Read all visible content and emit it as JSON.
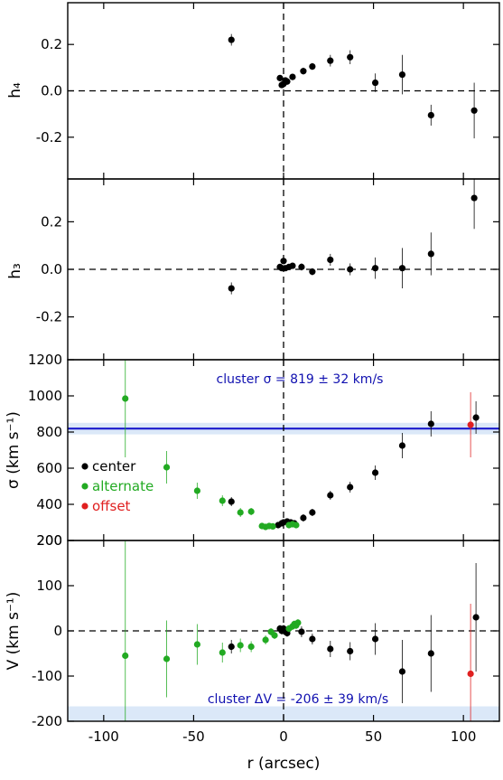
{
  "chart_data": [
    {
      "type": "scatter",
      "ylabel": "h₄",
      "ylim": [
        -0.38,
        0.38
      ],
      "yticks": [
        0.2,
        0.0,
        -0.2
      ],
      "ytick_labels": [
        "0.2",
        "0.0",
        "-0.2"
      ],
      "xlim": [
        -120,
        120
      ],
      "reference_lines": {
        "y0_dashed": true,
        "x0_dashed": true
      },
      "series": [
        {
          "color": "#000000",
          "points": [
            {
              "x": -29,
              "y": 0.22,
              "err": 0.025
            },
            {
              "x": -2,
              "y": 0.055,
              "err": 0.01
            },
            {
              "x": -1,
              "y": 0.025,
              "err": 0.01
            },
            {
              "x": 0,
              "y": 0.03,
              "err": 0.01
            },
            {
              "x": 1,
              "y": 0.045,
              "err": 0.01
            },
            {
              "x": 2,
              "y": 0.04,
              "err": 0.01
            },
            {
              "x": 5,
              "y": 0.06,
              "err": 0.01
            },
            {
              "x": 11,
              "y": 0.085,
              "err": 0.015
            },
            {
              "x": 16,
              "y": 0.105,
              "err": 0.015
            },
            {
              "x": 26,
              "y": 0.13,
              "err": 0.025
            },
            {
              "x": 37,
              "y": 0.145,
              "err": 0.03
            },
            {
              "x": 51,
              "y": 0.035,
              "err": 0.04
            },
            {
              "x": 66,
              "y": 0.07,
              "err": 0.085
            },
            {
              "x": 82,
              "y": -0.105,
              "err": 0.045
            },
            {
              "x": 106,
              "y": -0.085,
              "err": 0.12
            }
          ]
        }
      ]
    },
    {
      "type": "scatter",
      "ylabel": "h₃",
      "ylim": [
        -0.38,
        0.38
      ],
      "yticks": [
        0.2,
        0.0,
        -0.2
      ],
      "ytick_labels": [
        "0.2",
        "0.0",
        "-0.2"
      ],
      "xlim": [
        -120,
        120
      ],
      "reference_lines": {
        "y0_dashed": true,
        "x0_dashed": true
      },
      "series": [
        {
          "color": "#000000",
          "points": [
            {
              "x": -29,
              "y": -0.08,
              "err": 0.025
            },
            {
              "x": -2,
              "y": 0.01,
              "err": 0.01
            },
            {
              "x": -1,
              "y": 0.005,
              "err": 0.01
            },
            {
              "x": 0,
              "y": 0.035,
              "err": 0.01
            },
            {
              "x": 1,
              "y": 0.005,
              "err": 0.01
            },
            {
              "x": 3,
              "y": 0.01,
              "err": 0.01
            },
            {
              "x": 5,
              "y": 0.015,
              "err": 0.01
            },
            {
              "x": 10,
              "y": 0.01,
              "err": 0.015
            },
            {
              "x": 16,
              "y": -0.01,
              "err": 0.015
            },
            {
              "x": 26,
              "y": 0.04,
              "err": 0.025
            },
            {
              "x": 37,
              "y": 0.0,
              "err": 0.025
            },
            {
              "x": 51,
              "y": 0.005,
              "err": 0.045
            },
            {
              "x": 66,
              "y": 0.005,
              "err": 0.085
            },
            {
              "x": 82,
              "y": 0.065,
              "err": 0.09
            },
            {
              "x": 106,
              "y": 0.3,
              "err": 0.13
            }
          ]
        }
      ]
    },
    {
      "type": "scatter",
      "ylabel": "σ   (km s⁻¹)",
      "ylim": [
        200,
        1200
      ],
      "yticks": [
        1200,
        1000,
        800,
        600,
        400,
        200
      ],
      "ytick_labels": [
        "1200",
        "1000",
        "800",
        "600",
        "400",
        "200"
      ],
      "xlim": [
        -120,
        120
      ],
      "reference_lines": {
        "x0_dashed": true,
        "hline": {
          "y": 819,
          "err": 32,
          "color": "#1a1acc"
        }
      },
      "annotation": "cluster σ = 819 ± 32 km/s",
      "legend": [
        "center",
        "alternate",
        "offset"
      ],
      "legend_placement": "center-left",
      "series": [
        {
          "name": "center",
          "color": "#000000",
          "points": [
            {
              "x": -29,
              "y": 415,
              "err": 25
            },
            {
              "x": -3,
              "y": 285,
              "err": 15
            },
            {
              "x": -1,
              "y": 295,
              "err": 15
            },
            {
              "x": 0,
              "y": 300,
              "err": 15
            },
            {
              "x": 2,
              "y": 305,
              "err": 15
            },
            {
              "x": 4,
              "y": 300,
              "err": 15
            },
            {
              "x": 6,
              "y": 295,
              "err": 15
            },
            {
              "x": 11,
              "y": 325,
              "err": 20
            },
            {
              "x": 16,
              "y": 355,
              "err": 20
            },
            {
              "x": 26,
              "y": 450,
              "err": 25
            },
            {
              "x": 37,
              "y": 495,
              "err": 30
            },
            {
              "x": 51,
              "y": 575,
              "err": 40
            },
            {
              "x": 66,
              "y": 725,
              "err": 70
            },
            {
              "x": 82,
              "y": 845,
              "err": 70
            },
            {
              "x": 107,
              "y": 880,
              "err": 90
            }
          ]
        },
        {
          "name": "alternate",
          "color": "#22aa22",
          "points": [
            {
              "x": -88,
              "y": 985,
              "err": 325
            },
            {
              "x": -65,
              "y": 605,
              "err": 90
            },
            {
              "x": -48,
              "y": 475,
              "err": 45
            },
            {
              "x": -34,
              "y": 420,
              "err": 30
            },
            {
              "x": -24,
              "y": 355,
              "err": 25
            },
            {
              "x": -18,
              "y": 360,
              "err": 20
            },
            {
              "x": -12,
              "y": 280,
              "err": 15
            },
            {
              "x": -10,
              "y": 275,
              "err": 15
            },
            {
              "x": -8,
              "y": 280,
              "err": 15
            },
            {
              "x": -6,
              "y": 278,
              "err": 15
            },
            {
              "x": 3,
              "y": 285,
              "err": 15
            },
            {
              "x": 5,
              "y": 290,
              "err": 15
            },
            {
              "x": 7,
              "y": 285,
              "err": 15
            }
          ]
        },
        {
          "name": "offset",
          "color": "#e02020",
          "points": [
            {
              "x": 104,
              "y": 840,
              "err": 180
            }
          ]
        }
      ]
    },
    {
      "type": "scatter",
      "ylabel": "V   (km s⁻¹)",
      "xlabel": "r (arcsec)",
      "ylim": [
        -200,
        200
      ],
      "yticks": [
        200,
        100,
        0,
        -100,
        -200
      ],
      "ytick_labels": [
        "200",
        "100",
        "0",
        "-100",
        "-200"
      ],
      "xlim": [
        -120,
        120
      ],
      "xticks": [
        -100,
        -50,
        0,
        50,
        100
      ],
      "xtick_labels": [
        "-100",
        "-50",
        "0",
        "50",
        "100"
      ],
      "reference_lines": {
        "y0_dashed": true,
        "x0_dashed": true,
        "hline": {
          "y": -206,
          "err": 39,
          "color": "#1a1acc"
        }
      },
      "annotation": "cluster ΔV = -206 ± 39 km/s",
      "series": [
        {
          "name": "center",
          "color": "#000000",
          "points": [
            {
              "x": -29,
              "y": -35,
              "err": 15
            },
            {
              "x": -2,
              "y": 5,
              "err": 8
            },
            {
              "x": -1,
              "y": 0,
              "err": 8
            },
            {
              "x": 0,
              "y": 5,
              "err": 8
            },
            {
              "x": 1,
              "y": -2,
              "err": 8
            },
            {
              "x": 2,
              "y": -5,
              "err": 8
            },
            {
              "x": 10,
              "y": -2,
              "err": 12
            },
            {
              "x": 16,
              "y": -18,
              "err": 12
            },
            {
              "x": 26,
              "y": -40,
              "err": 18
            },
            {
              "x": 37,
              "y": -45,
              "err": 20
            },
            {
              "x": 51,
              "y": -18,
              "err": 35
            },
            {
              "x": 66,
              "y": -90,
              "err": 70
            },
            {
              "x": 82,
              "y": -50,
              "err": 85
            },
            {
              "x": 107,
              "y": 30,
              "err": 120
            }
          ]
        },
        {
          "name": "alternate",
          "color": "#22aa22",
          "points": [
            {
              "x": -88,
              "y": -55,
              "err": 255
            },
            {
              "x": -65,
              "y": -62,
              "err": 85
            },
            {
              "x": -48,
              "y": -30,
              "err": 45
            },
            {
              "x": -34,
              "y": -48,
              "err": 22
            },
            {
              "x": -24,
              "y": -32,
              "err": 15
            },
            {
              "x": -18,
              "y": -35,
              "err": 12
            },
            {
              "x": -10,
              "y": -20,
              "err": 10
            },
            {
              "x": -7,
              "y": -2,
              "err": 8
            },
            {
              "x": -5,
              "y": -10,
              "err": 8
            },
            {
              "x": 3,
              "y": 5,
              "err": 8
            },
            {
              "x": 5,
              "y": 10,
              "err": 8
            },
            {
              "x": 6,
              "y": 15,
              "err": 8
            },
            {
              "x": 7,
              "y": 12,
              "err": 8
            },
            {
              "x": 8,
              "y": 18,
              "err": 8
            }
          ]
        },
        {
          "name": "offset",
          "color": "#e02020",
          "points": [
            {
              "x": 104,
              "y": -95,
              "err": 155
            }
          ]
        }
      ]
    }
  ]
}
